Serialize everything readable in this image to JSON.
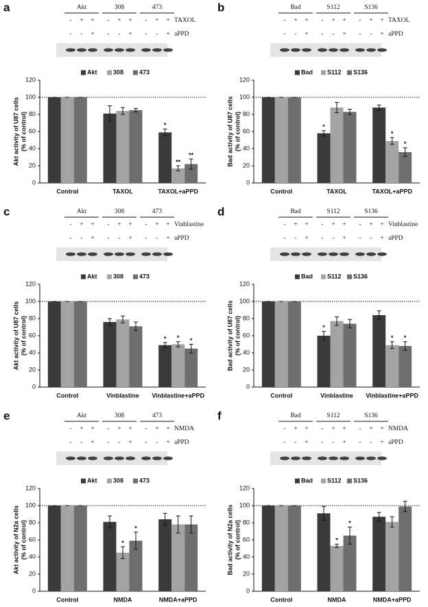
{
  "chart_data": [
    {
      "type": "bar",
      "panel": "a",
      "blot": {
        "groups": [
          "Akt",
          "308",
          "473"
        ],
        "rows": [
          {
            "label": "TAXOL",
            "signs": [
              "-",
              "+",
              "+",
              "-",
              "+",
              "+",
              "-",
              "+",
              "+"
            ]
          },
          {
            "label": "aPPD",
            "signs": [
              "-",
              "-",
              "+",
              "-",
              "-",
              "+",
              "-",
              "-",
              "+"
            ]
          }
        ]
      },
      "ylabel": [
        "Akt activity of U87 cells",
        "(% of control)"
      ],
      "categories": [
        "Control",
        "TAXOL",
        "TAXOL+aPPD"
      ],
      "series": [
        {
          "name": "Akt",
          "color": "#3a3a3a",
          "values": [
            100,
            81,
            59
          ],
          "errors": [
            0,
            9,
            4
          ],
          "annotations": [
            null,
            null,
            "*"
          ]
        },
        {
          "name": "308",
          "color": "#a3a3a3",
          "values": [
            100,
            84,
            17
          ],
          "errors": [
            0,
            4,
            3
          ],
          "annotations": [
            null,
            null,
            "**"
          ]
        },
        {
          "name": "473",
          "color": "#6e6e6e",
          "values": [
            100,
            85,
            22
          ],
          "errors": [
            0,
            2,
            6
          ],
          "annotations": [
            null,
            null,
            "**"
          ]
        }
      ],
      "reference_line": 100,
      "ylim": [
        0,
        120
      ],
      "yticks": [
        0,
        20,
        40,
        60,
        80,
        100,
        120
      ]
    },
    {
      "type": "bar",
      "panel": "b",
      "blot": {
        "groups": [
          "Bad",
          "S112",
          "S136"
        ],
        "rows": [
          {
            "label": "TAXOL",
            "signs": [
              "-",
              "+",
              "+",
              "-",
              "+",
              "+",
              "-",
              "+",
              "+"
            ]
          },
          {
            "label": "aPPD",
            "signs": [
              "-",
              "-",
              "+",
              "-",
              "-",
              "+",
              "-",
              "-",
              "+"
            ]
          }
        ]
      },
      "ylabel": [
        "Bad activity of U87 cells",
        "(% of control)"
      ],
      "categories": [
        "Control",
        "TAXOL",
        "TAXOL+aPPD"
      ],
      "series": [
        {
          "name": "Bad",
          "color": "#3a3a3a",
          "values": [
            100,
            58,
            88
          ],
          "errors": [
            0,
            3,
            3
          ],
          "annotations": [
            null,
            "*",
            null
          ]
        },
        {
          "name": "S112",
          "color": "#a3a3a3",
          "values": [
            100,
            88,
            49
          ],
          "errors": [
            0,
            6,
            4
          ],
          "annotations": [
            null,
            null,
            "*"
          ]
        },
        {
          "name": "S136",
          "color": "#6e6e6e",
          "values": [
            100,
            83,
            36
          ],
          "errors": [
            0,
            3,
            5
          ],
          "annotations": [
            null,
            null,
            "*"
          ]
        }
      ],
      "reference_line": 100,
      "ylim": [
        0,
        120
      ],
      "yticks": [
        0,
        20,
        40,
        60,
        80,
        100,
        120
      ]
    },
    {
      "type": "bar",
      "panel": "c",
      "blot": {
        "groups": [
          "Akt",
          "308",
          "473"
        ],
        "rows": [
          {
            "label": "Vinblastine",
            "signs": [
              "-",
              "+",
              "+",
              "-",
              "+",
              "+",
              "-",
              "+",
              "+"
            ]
          },
          {
            "label": "aPPD",
            "signs": [
              "-",
              "-",
              "+",
              "-",
              "-",
              "+",
              "-",
              "-",
              "+"
            ]
          }
        ]
      },
      "ylabel": [
        "Akt activity of U87 cells",
        "(% of control)"
      ],
      "categories": [
        "Control",
        "Vinblastine",
        "Vinblastine+aPPD"
      ],
      "series": [
        {
          "name": "Akt",
          "color": "#3a3a3a",
          "values": [
            100,
            76,
            49
          ],
          "errors": [
            0,
            4,
            3
          ],
          "annotations": [
            null,
            null,
            "*"
          ]
        },
        {
          "name": "308",
          "color": "#a3a3a3",
          "values": [
            100,
            79,
            50
          ],
          "errors": [
            0,
            4,
            3
          ],
          "annotations": [
            null,
            null,
            "*"
          ]
        },
        {
          "name": "473",
          "color": "#6e6e6e",
          "values": [
            100,
            71,
            45
          ],
          "errors": [
            0,
            5,
            5
          ],
          "annotations": [
            null,
            null,
            "*"
          ]
        }
      ],
      "reference_line": 100,
      "ylim": [
        0,
        120
      ],
      "yticks": [
        0,
        20,
        40,
        60,
        80,
        100,
        120
      ]
    },
    {
      "type": "bar",
      "panel": "d",
      "blot": {
        "groups": [
          "Bad",
          "S112",
          "S136"
        ],
        "rows": [
          {
            "label": "Vinblastine",
            "signs": [
              "-",
              "+",
              "+",
              "-",
              "+",
              "+",
              "-",
              "+",
              "+"
            ]
          },
          {
            "label": "aPPD",
            "signs": [
              "-",
              "-",
              "+",
              "-",
              "-",
              "+",
              "-",
              "-",
              "+"
            ]
          }
        ]
      },
      "ylabel": [
        "Bad activity of U87 cells",
        "(% of control)"
      ],
      "categories": [
        "Control",
        "Vinblastine",
        "Vinblastine+aPPD"
      ],
      "series": [
        {
          "name": "Bad",
          "color": "#3a3a3a",
          "values": [
            100,
            60,
            84
          ],
          "errors": [
            0,
            5,
            5
          ],
          "annotations": [
            null,
            "*",
            null
          ]
        },
        {
          "name": "S112",
          "color": "#a3a3a3",
          "values": [
            100,
            77,
            49
          ],
          "errors": [
            0,
            5,
            4
          ],
          "annotations": [
            null,
            null,
            "*"
          ]
        },
        {
          "name": "S136",
          "color": "#6e6e6e",
          "values": [
            100,
            74,
            48
          ],
          "errors": [
            0,
            5,
            5
          ],
          "annotations": [
            null,
            null,
            "*"
          ]
        }
      ],
      "reference_line": 100,
      "ylim": [
        0,
        120
      ],
      "yticks": [
        0,
        20,
        40,
        60,
        80,
        100,
        120
      ]
    },
    {
      "type": "bar",
      "panel": "e",
      "blot": {
        "groups": [
          "Akt",
          "308",
          "473"
        ],
        "rows": [
          {
            "label": "NMDA",
            "signs": [
              "-",
              "+",
              "+",
              "-",
              "+",
              "+",
              "-",
              "+",
              "+"
            ]
          },
          {
            "label": "aPPD",
            "signs": [
              "-",
              "-",
              "+",
              "-",
              "-",
              "+",
              "-",
              "-",
              "+"
            ]
          }
        ]
      },
      "ylabel": [
        "Akt activity of N2a cells",
        "(% of control)"
      ],
      "categories": [
        "Control",
        "NMDA",
        "NMDA+aPPD"
      ],
      "series": [
        {
          "name": "Akt",
          "color": "#3a3a3a",
          "values": [
            100,
            81,
            84
          ],
          "errors": [
            0,
            7,
            7
          ],
          "annotations": [
            null,
            null,
            null
          ]
        },
        {
          "name": "308",
          "color": "#a3a3a3",
          "values": [
            100,
            45,
            78
          ],
          "errors": [
            0,
            7,
            10
          ],
          "annotations": [
            null,
            "*",
            null
          ]
        },
        {
          "name": "473",
          "color": "#6e6e6e",
          "values": [
            100,
            59,
            78
          ],
          "errors": [
            0,
            10,
            10
          ],
          "annotations": [
            null,
            "*",
            null
          ]
        }
      ],
      "reference_line": 100,
      "ylim": [
        0,
        120
      ],
      "yticks": [
        0,
        20,
        40,
        60,
        80,
        100,
        120
      ]
    },
    {
      "type": "bar",
      "panel": "f",
      "blot": {
        "groups": [
          "Bad",
          "S112",
          "S136"
        ],
        "rows": [
          {
            "label": "NMDA",
            "signs": [
              "-",
              "+",
              "+",
              "-",
              "+",
              "+",
              "-",
              "+",
              "+"
            ]
          },
          {
            "label": "aPPD",
            "signs": [
              "-",
              "-",
              "+",
              "-",
              "-",
              "+",
              "-",
              "-",
              "+"
            ]
          }
        ]
      },
      "ylabel": [
        "Bad activity of N2a cells",
        "(% of control)"
      ],
      "categories": [
        "Control",
        "NMDA",
        "NMDA+aPPD"
      ],
      "series": [
        {
          "name": "Bad",
          "color": "#3a3a3a",
          "values": [
            100,
            91,
            87
          ],
          "errors": [
            0,
            8,
            5
          ],
          "annotations": [
            null,
            null,
            null
          ]
        },
        {
          "name": "S112",
          "color": "#a3a3a3",
          "values": [
            100,
            53,
            81
          ],
          "errors": [
            0,
            2,
            6
          ],
          "annotations": [
            null,
            "*",
            null
          ]
        },
        {
          "name": "S136",
          "color": "#6e6e6e",
          "values": [
            100,
            65,
            99
          ],
          "errors": [
            0,
            10,
            6
          ],
          "annotations": [
            null,
            "*",
            null
          ]
        }
      ],
      "reference_line": 100,
      "ylim": [
        0,
        120
      ],
      "yticks": [
        0,
        20,
        40,
        60,
        80,
        100,
        120
      ]
    }
  ]
}
